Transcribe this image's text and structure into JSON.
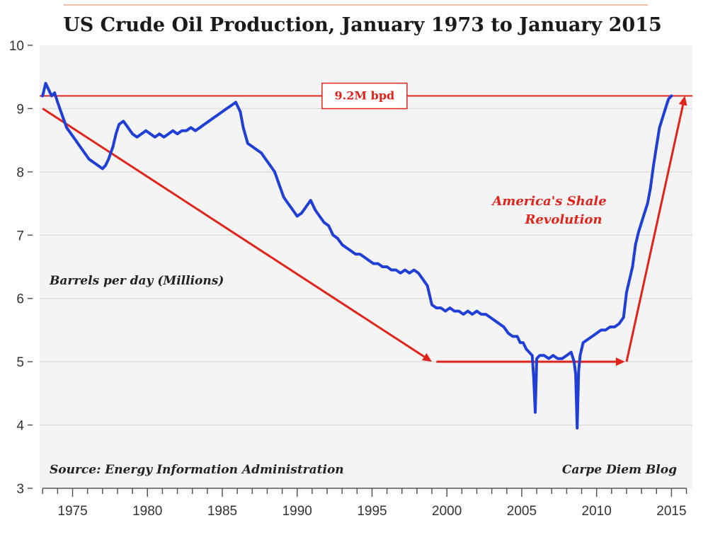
{
  "chart_data": {
    "type": "line",
    "title": "US Crude Oil Production, January 1973 to January 2015",
    "ylabel": "Barrels per day (Millions)",
    "source": "Source: Energy Information Administration",
    "credit": "Carpe Diem Blog",
    "xlim": [
      1972.8,
      2016.4
    ],
    "ylim": [
      3,
      10
    ],
    "yticks": [
      3,
      4,
      5,
      6,
      7,
      8,
      9,
      10
    ],
    "xticks": [
      1975,
      1980,
      1985,
      1990,
      1995,
      2000,
      2005,
      2010,
      2015
    ],
    "grid": "horizontal",
    "colors": {
      "series": "#1f3fd6",
      "annotation": "#e0241b",
      "grid": "#d9d9d9",
      "plot_background": "#f4f4f4"
    },
    "series": [
      {
        "x": [
          1973.0,
          1973.2,
          1973.4,
          1973.6,
          1973.8,
          1974.0,
          1974.3,
          1974.6,
          1974.9,
          1975.2,
          1975.5,
          1975.8,
          1976.1,
          1976.4,
          1976.7,
          1977.0,
          1977.2,
          1977.4,
          1977.7,
          1977.9,
          1978.1,
          1978.4,
          1978.7,
          1979.0,
          1979.3,
          1979.6,
          1979.9,
          1980.2,
          1980.5,
          1980.8,
          1981.1,
          1981.4,
          1981.7,
          1982.0,
          1982.3,
          1982.6,
          1982.9,
          1983.2,
          1983.5,
          1983.8,
          1984.1,
          1984.4,
          1984.7,
          1985.0,
          1985.3,
          1985.6,
          1985.9,
          1986.2,
          1986.4,
          1986.7,
          1987.0,
          1987.3,
          1987.6,
          1987.9,
          1988.2,
          1988.5,
          1988.8,
          1989.1,
          1989.4,
          1989.7,
          1990.0,
          1990.3,
          1990.6,
          1990.9,
          1991.2,
          1991.5,
          1991.8,
          1992.1,
          1992.4,
          1992.7,
          1993.0,
          1993.3,
          1993.6,
          1993.9,
          1994.2,
          1994.5,
          1994.8,
          1995.1,
          1995.4,
          1995.7,
          1996.0,
          1996.3,
          1996.6,
          1996.9,
          1997.2,
          1997.5,
          1997.8,
          1998.1,
          1998.4,
          1998.7,
          1999.0,
          1999.3,
          1999.6,
          1999.9,
          2000.2,
          2000.5,
          2000.8,
          2001.1,
          2001.4,
          2001.7,
          2002.0,
          2002.3,
          2002.6,
          2002.9,
          2003.2,
          2003.5,
          2003.8,
          2004.1,
          2004.4,
          2004.7,
          2004.9,
          2005.1,
          2005.3,
          2005.5,
          2005.7,
          2005.8,
          2005.9,
          2006.0,
          2006.2,
          2006.5,
          2006.8,
          2007.1,
          2007.4,
          2007.7,
          2008.0,
          2008.3,
          2008.5,
          2008.6,
          2008.7,
          2008.8,
          2008.9,
          2009.1,
          2009.4,
          2009.7,
          2010.0,
          2010.3,
          2010.6,
          2010.9,
          2011.2,
          2011.5,
          2011.8,
          2012.0,
          2012.2,
          2012.4,
          2012.6,
          2012.8,
          2013.0,
          2013.2,
          2013.4,
          2013.6,
          2013.8,
          2014.0,
          2014.2,
          2014.4,
          2014.6,
          2014.8,
          2015.0
        ],
        "values": [
          9.2,
          9.4,
          9.3,
          9.2,
          9.25,
          9.1,
          8.9,
          8.7,
          8.6,
          8.5,
          8.4,
          8.3,
          8.2,
          8.15,
          8.1,
          8.05,
          8.1,
          8.2,
          8.4,
          8.6,
          8.75,
          8.8,
          8.7,
          8.6,
          8.55,
          8.6,
          8.65,
          8.6,
          8.55,
          8.6,
          8.55,
          8.6,
          8.65,
          8.6,
          8.65,
          8.65,
          8.7,
          8.65,
          8.7,
          8.75,
          8.8,
          8.85,
          8.9,
          8.95,
          9.0,
          9.05,
          9.1,
          8.95,
          8.7,
          8.45,
          8.4,
          8.35,
          8.3,
          8.2,
          8.1,
          8.0,
          7.8,
          7.6,
          7.5,
          7.4,
          7.3,
          7.35,
          7.45,
          7.55,
          7.4,
          7.3,
          7.2,
          7.15,
          7.0,
          6.95,
          6.85,
          6.8,
          6.75,
          6.7,
          6.7,
          6.65,
          6.6,
          6.55,
          6.55,
          6.5,
          6.5,
          6.45,
          6.45,
          6.4,
          6.45,
          6.4,
          6.45,
          6.4,
          6.3,
          6.2,
          5.9,
          5.85,
          5.85,
          5.8,
          5.85,
          5.8,
          5.8,
          5.75,
          5.8,
          5.75,
          5.8,
          5.75,
          5.75,
          5.7,
          5.65,
          5.6,
          5.55,
          5.45,
          5.4,
          5.4,
          5.3,
          5.3,
          5.2,
          5.15,
          5.1,
          4.75,
          4.2,
          5.05,
          5.1,
          5.1,
          5.05,
          5.1,
          5.05,
          5.05,
          5.1,
          5.15,
          5.0,
          4.8,
          3.95,
          4.85,
          5.1,
          5.3,
          5.35,
          5.4,
          5.45,
          5.5,
          5.5,
          5.55,
          5.55,
          5.6,
          5.7,
          6.1,
          6.3,
          6.5,
          6.85,
          7.05,
          7.2,
          7.35,
          7.5,
          7.75,
          8.1,
          8.4,
          8.7,
          8.85,
          9.0,
          9.15,
          9.2
        ]
      }
    ],
    "annotations": {
      "level_label": "9.2M bpd",
      "level_value": 9.2,
      "shale_label_line1": "America's Shale",
      "shale_label_line2": "Revolution",
      "decline_arrow": {
        "from": [
          1973.0,
          9.0
        ],
        "to": [
          1999.0,
          5.0
        ]
      },
      "flat_arrow": {
        "from": [
          1999.3,
          5.0
        ],
        "to": [
          2011.9,
          5.0
        ]
      },
      "rise_arrow": {
        "from": [
          2012.0,
          5.0
        ],
        "to": [
          2015.9,
          9.2
        ]
      }
    }
  }
}
